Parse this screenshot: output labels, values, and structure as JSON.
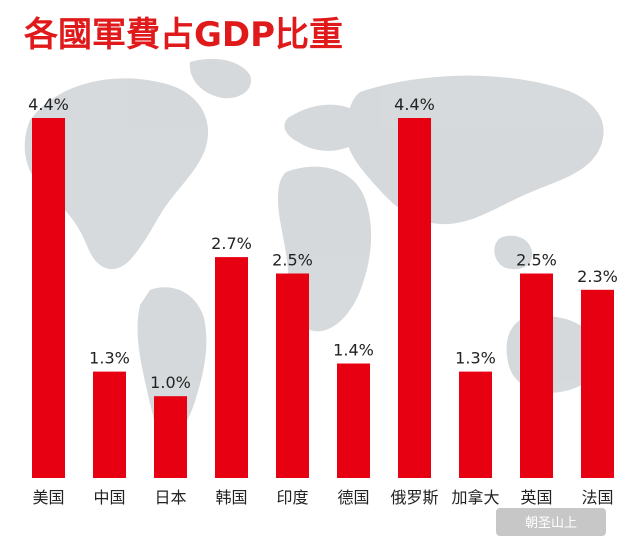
{
  "chart_data": {
    "type": "bar",
    "title": "各國軍費占GDP比重",
    "categories": [
      "美国",
      "中国",
      "日本",
      "韩国",
      "印度",
      "德国",
      "俄罗斯",
      "加拿大",
      "英国",
      "法国"
    ],
    "values": [
      4.4,
      1.3,
      1.0,
      2.7,
      2.5,
      1.4,
      4.4,
      1.3,
      2.5,
      2.3
    ],
    "value_labels": [
      "4.4%",
      "1.3%",
      "1.0%",
      "2.7%",
      "2.5%",
      "1.4%",
      "4.4%",
      "1.3%",
      "2.5%",
      "2.3%"
    ],
    "ylim": [
      0,
      4.4
    ],
    "grid": false,
    "bar_color": "#e60012"
  },
  "watermark": "朝圣山上"
}
